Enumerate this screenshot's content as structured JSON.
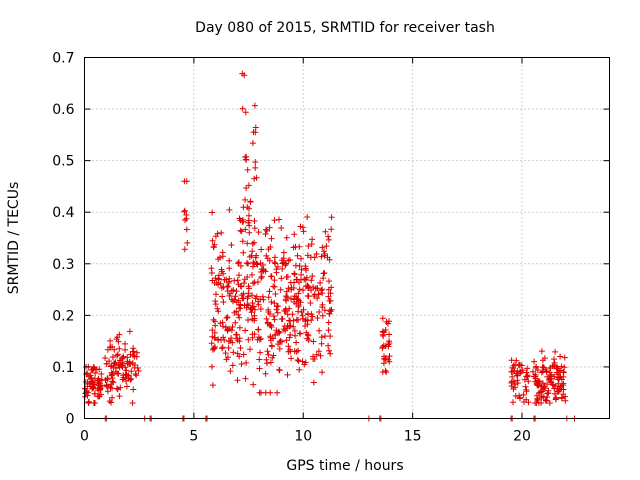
{
  "chart_data": {
    "type": "scatter",
    "title": "Day 080 of 2015, SRMTID for receiver tash",
    "xlabel": "GPS time / hours",
    "ylabel": "SRMTID / TECUs",
    "xlim": [
      0,
      24
    ],
    "ylim": [
      0,
      0.7
    ],
    "xticks": [
      0,
      5,
      10,
      15,
      20
    ],
    "xtick_labels": [
      "0",
      "5",
      "10",
      "15",
      "20"
    ],
    "yticks": [
      0,
      0.1,
      0.2,
      0.3,
      0.4,
      0.5,
      0.6,
      0.7
    ],
    "ytick_labels": [
      "0",
      "0.1",
      "0.2",
      "0.3",
      "0.4",
      "0.5",
      "0.6",
      "0.7"
    ],
    "grid": true,
    "marker": "+",
    "color": "#e00000",
    "clusters": [
      {
        "name": "cluster-1",
        "x_range": [
          0.0,
          0.8
        ],
        "y_center": 0.065,
        "y_spread": 0.02,
        "y_range": [
          0.03,
          0.1
        ],
        "count": 70
      },
      {
        "name": "cluster-2",
        "x_range": [
          0.9,
          2.5
        ],
        "y_center": 0.1,
        "y_spread": 0.03,
        "y_range": [
          0.03,
          0.19
        ],
        "count": 110
      },
      {
        "name": "cluster-3",
        "x_range": [
          4.5,
          4.7
        ],
        "y_center": 0.4,
        "y_spread": 0.06,
        "y_range": [
          0.27,
          0.46
        ],
        "count": 10
      },
      {
        "name": "cluster-4",
        "x_range": [
          5.8,
          11.3
        ],
        "y_center": 0.22,
        "y_spread": 0.07,
        "y_range": [
          0.05,
          0.45
        ],
        "count": 520
      },
      {
        "name": "cluster-5",
        "x_range": [
          7.2,
          7.9
        ],
        "y_center": 0.45,
        "y_spread": 0.1,
        "y_range": [
          0.3,
          0.69
        ],
        "count": 40
      },
      {
        "name": "cluster-6",
        "x_range": [
          13.6,
          13.95
        ],
        "y_center": 0.14,
        "y_spread": 0.03,
        "y_range": [
          0.09,
          0.21
        ],
        "count": 30
      },
      {
        "name": "cluster-7",
        "x_range": [
          19.5,
          20.3
        ],
        "y_center": 0.075,
        "y_spread": 0.02,
        "y_range": [
          0.03,
          0.12
        ],
        "count": 50
      },
      {
        "name": "cluster-8",
        "x_range": [
          20.5,
          22.0
        ],
        "y_center": 0.075,
        "y_spread": 0.025,
        "y_range": [
          0.03,
          0.16
        ],
        "count": 120
      }
    ],
    "zero_points_x": [
      0.95,
      1.0,
      2.75,
      3.0,
      3.05,
      4.5,
      4.55,
      5.55,
      5.6,
      13.0,
      13.5,
      13.55,
      19.5,
      19.55,
      20.55,
      20.6,
      22.05,
      22.4
    ]
  }
}
